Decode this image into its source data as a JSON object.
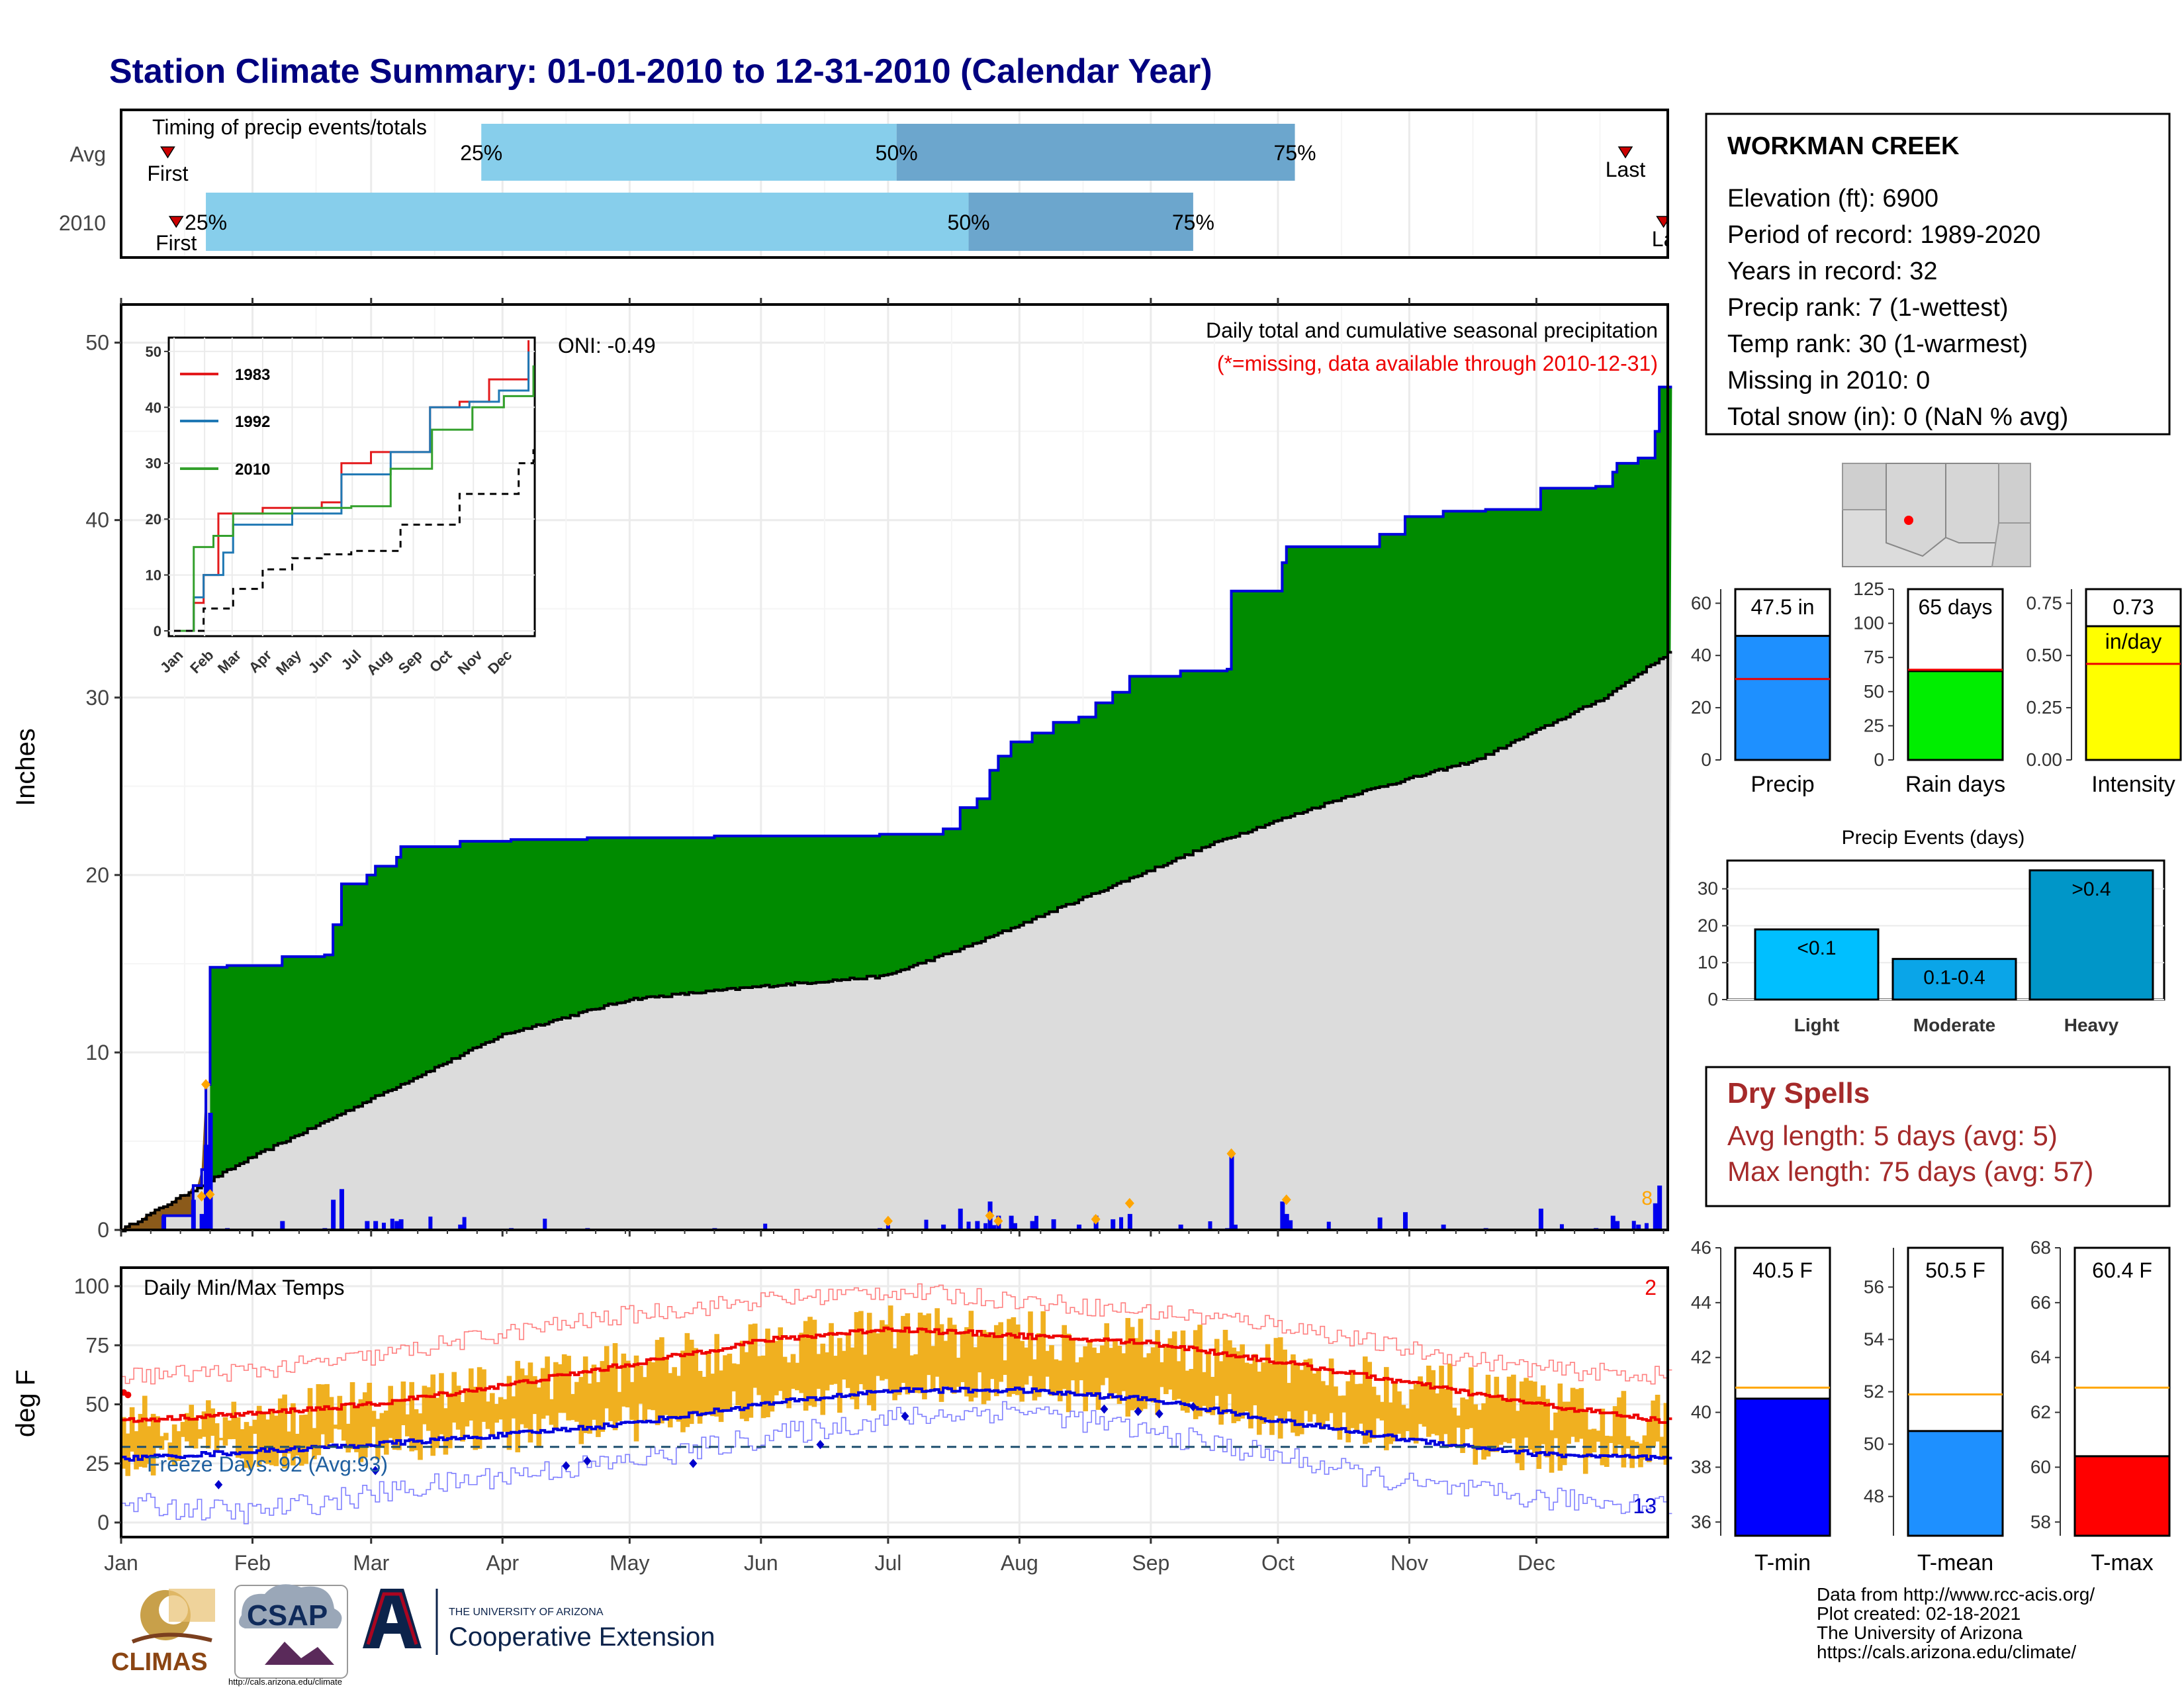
{
  "title": "Station Climate Summary: 01-01-2010 to 12-31-2010 (Calendar Year)",
  "timing": {
    "title": "Timing of precip events/totals",
    "row_labels": [
      "Avg",
      "2010"
    ],
    "first_label": "First",
    "last_labels": [
      "Last",
      "La"
    ],
    "pct_labels": [
      "25%",
      "50%",
      "75%"
    ]
  },
  "station": {
    "name": "WORKMAN CREEK",
    "lines": [
      "Elevation (ft): 6900",
      "Period of record: 1989-2020",
      "Years in record: 32",
      "Precip rank: 7 (1-wettest)",
      "Temp rank: 30 (1-warmest)",
      "Missing in 2010: 0",
      "Total snow (in): 0 (NaN % avg)"
    ]
  },
  "precip_panel": {
    "ylabel": "Inches",
    "caption": "Daily total and cumulative seasonal precipitation",
    "missing_note": "(*=missing, data available through 2010-12-31)",
    "oni": "ONI: -0.49",
    "right_edge_count": "8"
  },
  "temp_panel": {
    "ylabel": "deg F",
    "caption": "Daily Min/Max Temps",
    "freeze": "Freeze Days: 92 (Avg:93)",
    "hot_count": "2",
    "cold_count": "13"
  },
  "months": [
    "Jan",
    "Feb",
    "Mar",
    "Apr",
    "May",
    "Jun",
    "Jul",
    "Aug",
    "Sep",
    "Oct",
    "Nov",
    "Dec"
  ],
  "inset": {
    "series": [
      "1983",
      "1992",
      "2010"
    ],
    "colors": [
      "#e31a1c",
      "#1f78b4",
      "#33a02c"
    ]
  },
  "gauges": [
    {
      "label": "Precip",
      "value_text": "47.5 in",
      "color": "#1e90ff"
    },
    {
      "label": "Rain days",
      "value_text": "65 days",
      "color": "#00ee00"
    },
    {
      "label": "Intensity",
      "value_text": "0.73",
      "unit_text": "in/day",
      "color": "#ffff00"
    }
  ],
  "events": {
    "title": "Precip Events (days)",
    "bar_labels": [
      "<0.1",
      "0.1-0.4",
      ">0.4"
    ],
    "categories": [
      "Light",
      "Moderate",
      "Heavy"
    ]
  },
  "dry_spells": {
    "title": "Dry Spells",
    "avg": "Avg length: 5 days (avg: 5)",
    "max": "Max length: 75 days (avg: 57)"
  },
  "temp_gauges": [
    {
      "label": "T-min",
      "value_text": "40.5 F",
      "color": "#0000ff"
    },
    {
      "label": "T-mean",
      "value_text": "50.5 F",
      "color": "#1e90ff"
    },
    {
      "label": "T-max",
      "value_text": "60.4 F",
      "color": "#ff0000"
    }
  ],
  "footer": [
    "Data from http://www.rcc-acis.org/",
    "Plot created: 02-18-2021",
    "The University of Arizona",
    "https://cals.arizona.edu/climate/"
  ],
  "logos": {
    "climas": "CLIMAS",
    "csap": "CSAP",
    "csap_url": "http://cals.arizona.edu/climate",
    "ua_small": "THE UNIVERSITY OF ARIZONA",
    "ua_big": "Cooperative Extension"
  },
  "chart_data": [
    {
      "type": "bar",
      "title": "Timing of precip events/totals",
      "series": [
        {
          "name": "Avg",
          "first_day": 11,
          "p25_day": 85,
          "p50_day": 183,
          "p75_day": 277,
          "last_day": 355
        },
        {
          "name": "2010",
          "first_day": 13,
          "p25_day": 20,
          "p50_day": 200,
          "p75_day": 253,
          "last_day": 364
        }
      ]
    },
    {
      "type": "area",
      "title": "Daily total and cumulative seasonal precipitation",
      "ylabel": "Inches",
      "ylim": [
        0,
        52
      ],
      "cumulative_2010": [
        [
          0,
          0
        ],
        [
          10,
          0.8
        ],
        [
          17,
          2.5
        ],
        [
          19,
          3.4
        ],
        [
          20,
          8.2
        ],
        [
          21,
          14.8
        ],
        [
          25,
          14.9
        ],
        [
          38,
          15.4
        ],
        [
          48,
          15.5
        ],
        [
          50,
          17.2
        ],
        [
          52,
          19.5
        ],
        [
          58,
          20.0
        ],
        [
          60,
          20.5
        ],
        [
          65,
          21.0
        ],
        [
          66,
          21.6
        ],
        [
          75,
          21.6
        ],
        [
          80,
          21.9
        ],
        [
          92,
          22.0
        ],
        [
          110,
          22.1
        ],
        [
          140,
          22.2
        ],
        [
          170,
          22.2
        ],
        [
          179,
          22.3
        ],
        [
          183,
          22.3
        ],
        [
          194,
          22.6
        ],
        [
          198,
          23.8
        ],
        [
          202,
          24.3
        ],
        [
          205,
          25.9
        ],
        [
          207,
          26.7
        ],
        [
          210,
          27.5
        ],
        [
          215,
          28.0
        ],
        [
          220,
          28.6
        ],
        [
          226,
          28.9
        ],
        [
          230,
          29.7
        ],
        [
          234,
          30.3
        ],
        [
          238,
          31.2
        ],
        [
          250,
          31.5
        ],
        [
          261,
          31.6
        ],
        [
          262,
          36.0
        ],
        [
          274,
          37.6
        ],
        [
          275,
          38.5
        ],
        [
          297,
          39.2
        ],
        [
          303,
          40.2
        ],
        [
          312,
          40.5
        ],
        [
          322,
          40.6
        ],
        [
          335,
          41.8
        ],
        [
          348,
          41.9
        ],
        [
          352,
          42.7
        ],
        [
          353,
          43.2
        ],
        [
          358,
          43.5
        ],
        [
          362,
          45.0
        ],
        [
          363,
          47.5
        ],
        [
          365,
          47.5
        ]
      ],
      "cumulative_avg": [
        [
          0,
          0
        ],
        [
          30,
          4.0
        ],
        [
          60,
          7.5
        ],
        [
          90,
          11.0
        ],
        [
          120,
          13.0
        ],
        [
          150,
          13.7
        ],
        [
          180,
          14.3
        ],
        [
          200,
          16.0
        ],
        [
          230,
          19.0
        ],
        [
          260,
          22.0
        ],
        [
          290,
          24.5
        ],
        [
          320,
          26.5
        ],
        [
          350,
          30.0
        ],
        [
          365,
          32.5
        ]
      ],
      "daily_highlights_2010": [
        [
          19,
          1.9
        ],
        [
          20,
          8.2
        ],
        [
          21,
          2.0
        ],
        [
          181,
          0.5
        ],
        [
          205,
          0.8
        ],
        [
          207,
          0.5
        ],
        [
          230,
          0.6
        ],
        [
          238,
          1.5
        ],
        [
          262,
          4.3
        ],
        [
          275,
          1.7
        ]
      ]
    },
    {
      "type": "line",
      "title": "Inset cumulative precipitation",
      "ylim": [
        0,
        50
      ],
      "series": [
        {
          "name": "1983",
          "values": [
            [
              0,
              0
            ],
            [
              20,
              5
            ],
            [
              30,
              10
            ],
            [
              45,
              21
            ],
            [
              90,
              22
            ],
            [
              150,
              23
            ],
            [
              170,
              30
            ],
            [
              200,
              32
            ],
            [
              260,
              40
            ],
            [
              290,
              41
            ],
            [
              320,
              45
            ],
            [
              360,
              52
            ]
          ]
        },
        {
          "name": "1992",
          "values": [
            [
              0,
              0
            ],
            [
              20,
              6
            ],
            [
              30,
              10
            ],
            [
              50,
              14
            ],
            [
              60,
              19
            ],
            [
              120,
              21
            ],
            [
              170,
              28
            ],
            [
              220,
              32
            ],
            [
              260,
              40
            ],
            [
              300,
              41
            ],
            [
              330,
              43
            ],
            [
              360,
              50
            ]
          ]
        },
        {
          "name": "2010",
          "values": [
            [
              0,
              0
            ],
            [
              20,
              15
            ],
            [
              40,
              17
            ],
            [
              60,
              21
            ],
            [
              120,
              22
            ],
            [
              180,
              22.3
            ],
            [
              220,
              29
            ],
            [
              262,
              36
            ],
            [
              303,
              40
            ],
            [
              335,
              42
            ],
            [
              365,
              47.5
            ]
          ]
        },
        {
          "name": "Avg",
          "values": [
            [
              0,
              0
            ],
            [
              30,
              4
            ],
            [
              60,
              7.5
            ],
            [
              90,
              11
            ],
            [
              120,
              13
            ],
            [
              150,
              13.7
            ],
            [
              180,
              14.3
            ],
            [
              230,
              19
            ],
            [
              290,
              24.5
            ],
            [
              350,
              30
            ],
            [
              365,
              32.5
            ]
          ]
        }
      ]
    },
    {
      "type": "line",
      "title": "Daily Min/Max Temps",
      "ylabel": "deg F",
      "ylim": [
        0,
        100
      ],
      "freeze_line": 32,
      "avg_max": [
        [
          0,
          43
        ],
        [
          30,
          46
        ],
        [
          59,
          50
        ],
        [
          90,
          58
        ],
        [
          120,
          67
        ],
        [
          151,
          77
        ],
        [
          181,
          82
        ],
        [
          212,
          79
        ],
        [
          243,
          76
        ],
        [
          273,
          68
        ],
        [
          304,
          59
        ],
        [
          334,
          50
        ],
        [
          364,
          43
        ]
      ],
      "avg_min": [
        [
          0,
          27
        ],
        [
          30,
          30
        ],
        [
          59,
          33
        ],
        [
          90,
          37
        ],
        [
          120,
          42
        ],
        [
          151,
          50
        ],
        [
          181,
          56
        ],
        [
          212,
          56
        ],
        [
          243,
          52
        ],
        [
          273,
          43
        ],
        [
          304,
          35
        ],
        [
          334,
          29
        ],
        [
          364,
          27
        ]
      ],
      "record_max": [
        [
          0,
          62
        ],
        [
          30,
          64
        ],
        [
          59,
          70
        ],
        [
          90,
          80
        ],
        [
          120,
          88
        ],
        [
          151,
          94
        ],
        [
          181,
          98
        ],
        [
          212,
          94
        ],
        [
          243,
          89
        ],
        [
          273,
          84
        ],
        [
          304,
          73
        ],
        [
          334,
          65
        ],
        [
          364,
          62
        ]
      ],
      "record_min": [
        [
          0,
          8
        ],
        [
          30,
          4
        ],
        [
          59,
          12
        ],
        [
          90,
          20
        ],
        [
          120,
          26
        ],
        [
          151,
          36
        ],
        [
          181,
          44
        ],
        [
          212,
          48
        ],
        [
          243,
          38
        ],
        [
          273,
          28
        ],
        [
          304,
          16
        ],
        [
          334,
          10
        ],
        [
          364,
          8
        ]
      ]
    },
    {
      "type": "bar",
      "title": "Year totals",
      "series": [
        {
          "name": "Precip",
          "value": 47.5,
          "avg": 31,
          "ylim": [
            0,
            60
          ]
        },
        {
          "name": "Rain days",
          "value": 65,
          "avg": 66,
          "ylim": [
            0,
            125
          ]
        },
        {
          "name": "Intensity",
          "value": 0.73,
          "avg": 0.46,
          "ylim": [
            0,
            0.75
          ]
        }
      ]
    },
    {
      "type": "bar",
      "title": "Precip Events (days)",
      "categories": [
        "Light",
        "Moderate",
        "Heavy"
      ],
      "values": [
        19,
        11,
        35
      ],
      "ylim": [
        0,
        35
      ]
    },
    {
      "type": "bar",
      "title": "Temperature summary",
      "series": [
        {
          "name": "T-min",
          "value": 40.5,
          "avg": 40.9,
          "ylim": [
            35.5,
            46
          ]
        },
        {
          "name": "T-mean",
          "value": 50.5,
          "avg": 51.9,
          "ylim": [
            46.5,
            57.5
          ]
        },
        {
          "name": "T-max",
          "value": 60.4,
          "avg": 62.9,
          "ylim": [
            57.5,
            68
          ]
        }
      ]
    }
  ]
}
